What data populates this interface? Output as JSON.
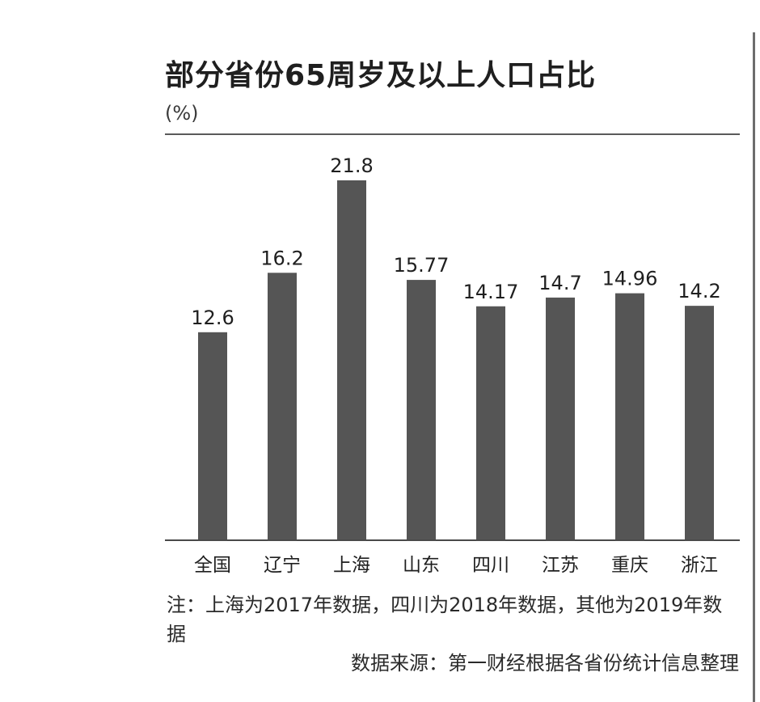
{
  "title": "部分省份65周岁及以上人口占比",
  "unit": "(%)",
  "note": "注：上海为2017年数据，四川为2018年数据，其他为2019年数据",
  "source": "数据来源：第一财经根据各省份统计信息整理",
  "colors": {
    "bar": "#555555",
    "axis": "#4a4a4a",
    "text": "#1f1f1f"
  },
  "chart_data": {
    "type": "bar",
    "categories": [
      "全国",
      "辽宁",
      "上海",
      "山东",
      "四川",
      "江苏",
      "重庆",
      "浙江"
    ],
    "values": [
      12.6,
      16.2,
      21.8,
      15.77,
      14.17,
      14.7,
      14.96,
      14.2
    ],
    "value_labels": [
      "12.6",
      "16.2",
      "21.8",
      "15.77",
      "14.17",
      "14.7",
      "14.96",
      "14.2"
    ],
    "title": "部分省份65周岁及以上人口占比",
    "ylabel": "(%)",
    "ylim": [
      0,
      21.8
    ],
    "grid": false,
    "legend": "none"
  }
}
